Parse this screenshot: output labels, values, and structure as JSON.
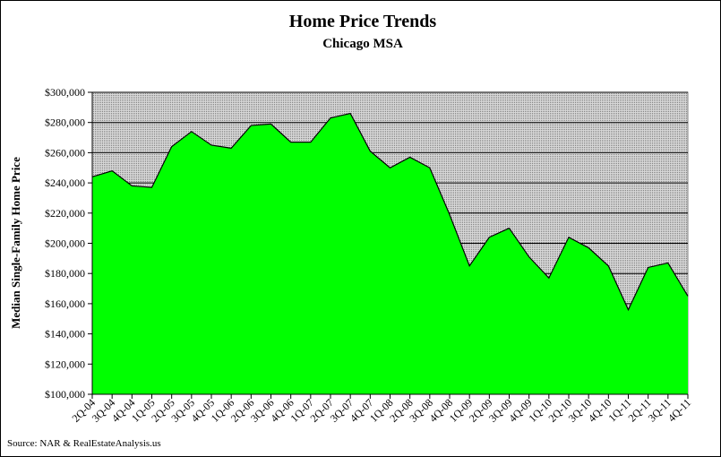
{
  "chart_data": {
    "type": "area",
    "title": "Home Price Trends",
    "subtitle": "Chicago MSA",
    "y_label": "Median Single-Family Home Price",
    "source": "Source: NAR & RealEstateAnalysis.us",
    "categories": [
      "2Q-04",
      "3Q-04",
      "4Q-04",
      "1Q-05",
      "2Q-05",
      "3Q-05",
      "4Q-05",
      "1Q-06",
      "2Q-06",
      "3Q-06",
      "4Q-06",
      "1Q-07",
      "2Q-07",
      "3Q-07",
      "4Q-07",
      "1Q-08",
      "2Q-08",
      "3Q-08",
      "4Q-08",
      "1Q-09",
      "2Q-09",
      "3Q-09",
      "4Q-09",
      "1Q-10",
      "2Q-10",
      "3Q-10",
      "4Q-10",
      "1Q-11",
      "2Q-11",
      "3Q-11",
      "4Q-11"
    ],
    "values": [
      244000,
      248000,
      238000,
      237000,
      264000,
      274000,
      265000,
      263000,
      278000,
      279000,
      267000,
      267000,
      283000,
      286000,
      261000,
      250000,
      257000,
      250000,
      219000,
      185000,
      204000,
      210000,
      191000,
      177000,
      204000,
      197000,
      185000,
      156000,
      184000,
      187000,
      165000
    ],
    "color": "#00ff00",
    "ylim": [
      100000,
      300000
    ],
    "yticks": [
      {
        "value": 100000,
        "label": "$100,000"
      },
      {
        "value": 120000,
        "label": "$120,000"
      },
      {
        "value": 140000,
        "label": "$140,000"
      },
      {
        "value": 160000,
        "label": "$160,000"
      },
      {
        "value": 180000,
        "label": "$180,000"
      },
      {
        "value": 200000,
        "label": "$200,000"
      },
      {
        "value": 220000,
        "label": "$220,000"
      },
      {
        "value": 240000,
        "label": "$240,000"
      },
      {
        "value": 260000,
        "label": "$260,000"
      },
      {
        "value": 280000,
        "label": "$280,000"
      },
      {
        "value": 300000,
        "label": "$300,000"
      }
    ],
    "grid": true
  }
}
